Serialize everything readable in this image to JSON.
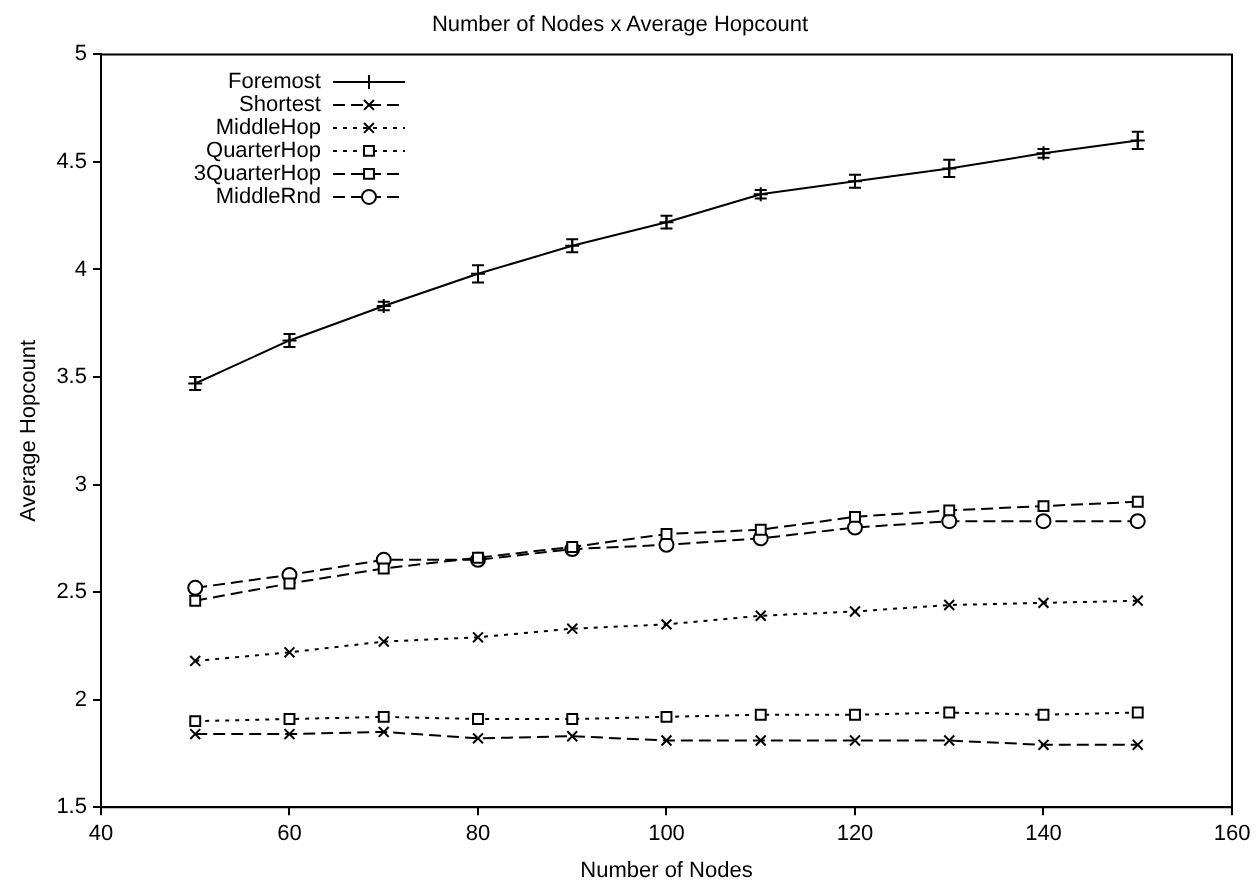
{
  "chart_data": {
    "type": "line",
    "title": "Number of Nodes x Average Hopcount",
    "xlabel": "Number of Nodes",
    "ylabel": "Average Hopcount",
    "x": [
      50,
      60,
      70,
      80,
      90,
      100,
      110,
      120,
      130,
      140,
      150
    ],
    "xlim": [
      40,
      160
    ],
    "xticks": [
      40,
      60,
      80,
      100,
      120,
      140,
      160
    ],
    "ylim": [
      1.5,
      5
    ],
    "yticks": [
      1.5,
      2,
      2.5,
      3,
      3.5,
      4,
      4.5,
      5
    ],
    "grid": false,
    "legend": "top left",
    "series": [
      {
        "name": "Foremost",
        "color": "#000000",
        "marker": "plus",
        "line_style": "solid",
        "values": [
          3.47,
          3.67,
          3.83,
          3.98,
          4.11,
          4.22,
          4.35,
          4.41,
          4.47,
          4.54,
          4.6
        ],
        "errors": [
          0.03,
          0.03,
          0.02,
          0.04,
          0.03,
          0.03,
          0.02,
          0.03,
          0.04,
          0.02,
          0.04
        ]
      },
      {
        "name": "Shortest",
        "color": "#000000",
        "marker": "cross",
        "line_style": "dashed",
        "values": [
          1.84,
          1.84,
          1.85,
          1.82,
          1.83,
          1.81,
          1.81,
          1.81,
          1.81,
          1.79,
          1.79
        ]
      },
      {
        "name": "MiddleHop",
        "color": "#000000",
        "marker": "cross",
        "line_style": "dotted",
        "values": [
          2.18,
          2.22,
          2.27,
          2.29,
          2.33,
          2.35,
          2.39,
          2.41,
          2.44,
          2.45,
          2.46
        ]
      },
      {
        "name": "QuarterHop",
        "color": "#000000",
        "marker": "square",
        "line_style": "dotted",
        "values": [
          1.9,
          1.91,
          1.92,
          1.91,
          1.91,
          1.92,
          1.93,
          1.93,
          1.94,
          1.93,
          1.94
        ]
      },
      {
        "name": "3QuarterHop",
        "color": "#000000",
        "marker": "square",
        "line_style": "dashed",
        "values": [
          2.46,
          2.54,
          2.61,
          2.66,
          2.71,
          2.77,
          2.79,
          2.85,
          2.88,
          2.9,
          2.92
        ]
      },
      {
        "name": "MiddleRnd",
        "color": "#000000",
        "marker": "circle",
        "line_style": "dashed",
        "values": [
          2.52,
          2.58,
          2.65,
          2.65,
          2.7,
          2.72,
          2.75,
          2.8,
          2.83,
          2.83,
          2.83
        ]
      }
    ]
  }
}
